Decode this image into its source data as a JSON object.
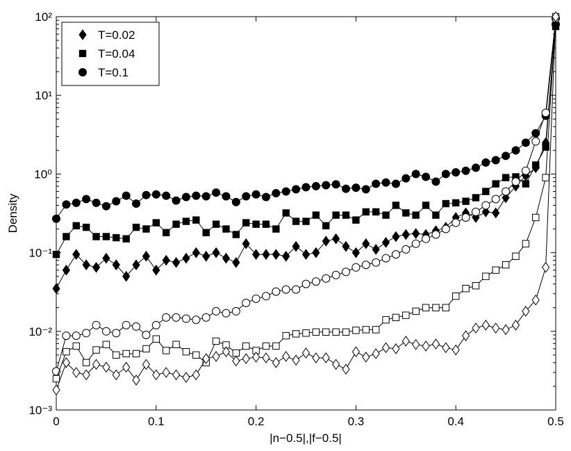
{
  "chart_data": {
    "type": "line",
    "xlabel": "|n−0.5|,|f−0.5|",
    "ylabel": "Density",
    "log_y": true,
    "legend_position": "upper-left",
    "xlim": [
      0,
      0.5
    ],
    "ylim": [
      0.001,
      100
    ],
    "xticks": [
      0,
      0.1,
      0.2,
      0.3,
      0.4,
      0.5
    ],
    "yticks": [
      {
        "value": 0.001,
        "label": "10⁻³"
      },
      {
        "value": 0.01,
        "label": "10⁻²"
      },
      {
        "value": 0.1,
        "label": "10⁻¹"
      },
      {
        "value": 1,
        "label": "10⁰"
      },
      {
        "value": 10,
        "label": "10¹"
      },
      {
        "value": 100,
        "label": "10²"
      }
    ],
    "x": [
      0,
      0.01,
      0.02,
      0.03,
      0.04,
      0.05,
      0.06,
      0.07,
      0.08,
      0.09,
      0.1,
      0.11,
      0.12,
      0.13,
      0.14,
      0.15,
      0.16,
      0.17,
      0.18,
      0.19,
      0.2,
      0.21,
      0.22,
      0.23,
      0.24,
      0.25,
      0.26,
      0.27,
      0.28,
      0.29,
      0.3,
      0.31,
      0.32,
      0.33,
      0.34,
      0.35,
      0.36,
      0.37,
      0.38,
      0.39,
      0.4,
      0.41,
      0.42,
      0.43,
      0.44,
      0.45,
      0.46,
      0.47,
      0.48,
      0.49,
      0.5
    ],
    "series": [
      {
        "name": "T=0.02",
        "color": "#000000",
        "marker": "diamond",
        "filled": true,
        "values": [
          0.035,
          0.06,
          0.095,
          0.07,
          0.065,
          0.085,
          0.07,
          0.05,
          0.07,
          0.09,
          0.06,
          0.08,
          0.075,
          0.085,
          0.1,
          0.09,
          0.1,
          0.085,
          0.075,
          0.13,
          0.095,
          0.095,
          0.095,
          0.09,
          0.12,
          0.095,
          0.1,
          0.14,
          0.15,
          0.12,
          0.1,
          0.13,
          0.11,
          0.135,
          0.16,
          0.17,
          0.175,
          0.17,
          0.19,
          0.21,
          0.28,
          0.32,
          0.28,
          0.33,
          0.32,
          0.5,
          0.7,
          0.95,
          1.2,
          2.5,
          80
        ]
      },
      {
        "name": "T=0.04",
        "color": "#000000",
        "marker": "square",
        "filled": true,
        "values": [
          0.095,
          0.16,
          0.22,
          0.21,
          0.16,
          0.16,
          0.155,
          0.15,
          0.21,
          0.2,
          0.24,
          0.18,
          0.23,
          0.25,
          0.26,
          0.18,
          0.23,
          0.2,
          0.17,
          0.24,
          0.23,
          0.23,
          0.2,
          0.32,
          0.25,
          0.25,
          0.3,
          0.22,
          0.3,
          0.3,
          0.26,
          0.33,
          0.33,
          0.3,
          0.4,
          0.32,
          0.3,
          0.4,
          0.3,
          0.42,
          0.43,
          0.45,
          0.5,
          0.6,
          0.75,
          0.9,
          0.92,
          0.75,
          1.3,
          2.2,
          75
        ]
      },
      {
        "name": "T=0.1",
        "color": "#000000",
        "marker": "circle",
        "filled": true,
        "values": [
          0.27,
          0.41,
          0.43,
          0.48,
          0.43,
          0.39,
          0.45,
          0.53,
          0.42,
          0.54,
          0.55,
          0.53,
          0.46,
          0.51,
          0.53,
          0.52,
          0.58,
          0.52,
          0.44,
          0.52,
          0.55,
          0.51,
          0.57,
          0.6,
          0.64,
          0.68,
          0.7,
          0.72,
          0.74,
          0.65,
          0.67,
          0.64,
          0.75,
          0.78,
          0.75,
          0.88,
          1.0,
          0.92,
          0.8,
          1.0,
          1.05,
          1.1,
          1.2,
          1.4,
          1.5,
          1.7,
          2.0,
          2.5,
          3.3,
          5.5,
          80
        ]
      },
      {
        "color": "#000000",
        "marker": "circle",
        "filled": false,
        "values": [
          0.0031,
          0.0088,
          0.0088,
          0.0095,
          0.012,
          0.01,
          0.0095,
          0.012,
          0.0115,
          0.009,
          0.012,
          0.015,
          0.015,
          0.0145,
          0.014,
          0.015,
          0.018,
          0.017,
          0.018,
          0.023,
          0.026,
          0.028,
          0.032,
          0.034,
          0.034,
          0.04,
          0.043,
          0.047,
          0.052,
          0.057,
          0.065,
          0.07,
          0.075,
          0.085,
          0.095,
          0.11,
          0.13,
          0.15,
          0.17,
          0.2,
          0.24,
          0.28,
          0.33,
          0.4,
          0.48,
          0.6,
          0.8,
          1.1,
          2.6,
          6.0,
          95
        ]
      },
      {
        "color": "#000000",
        "marker": "square",
        "filled": false,
        "values": [
          0.0025,
          0.0055,
          0.0065,
          0.004,
          0.0058,
          0.0068,
          0.005,
          0.0052,
          0.0052,
          0.006,
          0.008,
          0.0057,
          0.0068,
          0.0055,
          0.005,
          0.004,
          0.0075,
          0.0067,
          0.0053,
          0.0065,
          0.0057,
          0.0065,
          0.0065,
          0.0088,
          0.0093,
          0.0095,
          0.0098,
          0.0098,
          0.0098,
          0.0098,
          0.0103,
          0.0105,
          0.0105,
          0.014,
          0.015,
          0.016,
          0.018,
          0.02,
          0.02,
          0.02,
          0.028,
          0.035,
          0.038,
          0.05,
          0.06,
          0.07,
          0.09,
          0.13,
          0.28,
          0.9,
          100
        ]
      },
      {
        "color": "#000000",
        "marker": "diamond",
        "filled": false,
        "values": [
          0.0018,
          0.004,
          0.003,
          0.0028,
          0.0038,
          0.0035,
          0.0028,
          0.0035,
          0.0024,
          0.0038,
          0.0028,
          0.003,
          0.0028,
          0.0026,
          0.0028,
          0.0045,
          0.0048,
          0.0055,
          0.0042,
          0.0045,
          0.0047,
          0.0046,
          0.004,
          0.0048,
          0.0043,
          0.0053,
          0.0046,
          0.0046,
          0.0038,
          0.0033,
          0.0055,
          0.0047,
          0.0052,
          0.0062,
          0.006,
          0.0075,
          0.0068,
          0.0065,
          0.0069,
          0.0062,
          0.0058,
          0.0088,
          0.011,
          0.012,
          0.011,
          0.0105,
          0.012,
          0.018,
          0.025,
          0.065,
          100
        ]
      }
    ]
  }
}
